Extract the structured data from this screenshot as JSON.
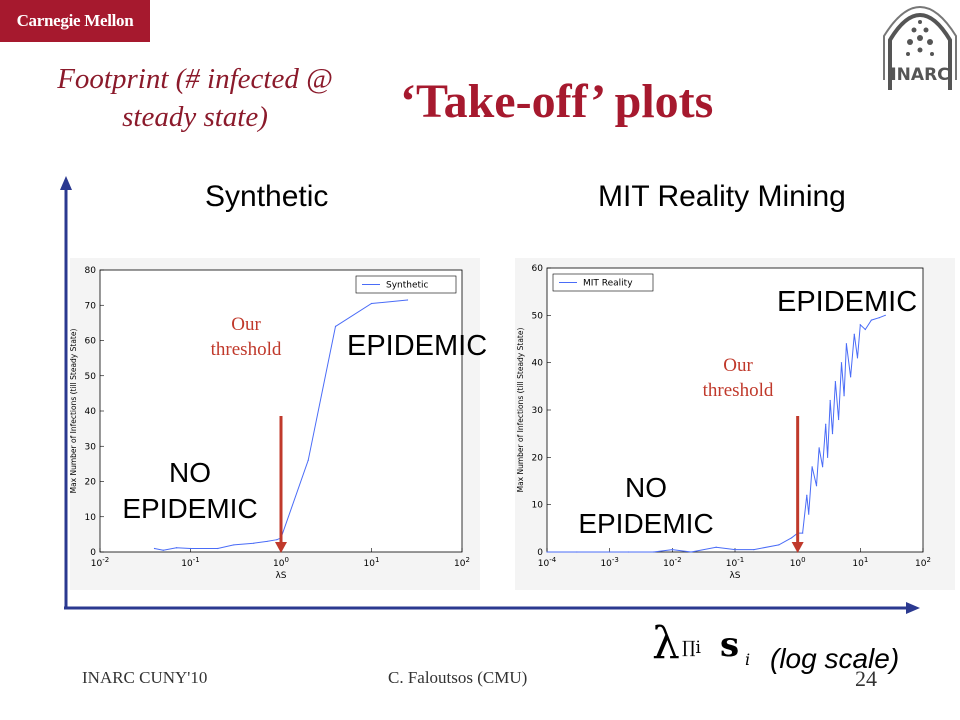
{
  "slide": {
    "logo_text": "Carnegie Mellon",
    "badge_text": "INARC",
    "subtitle": "Footprint (# infected @ steady state)",
    "title": "‘Take-off’ plots",
    "panel_left_title": "Synthetic",
    "panel_right_title": "MIT Reality Mining",
    "x_formula_lambda": "λ",
    "x_formula_prod": "∏i",
    "x_formula_s": "s",
    "x_formula_s_sub": "i",
    "log_scale": "(log scale)",
    "footer_left": "INARC CUNY'10",
    "footer_center": "C. Faloutsos (CMU)",
    "slide_number": "24",
    "annotations": {
      "left_no_epidemic_1": "NO",
      "left_no_epidemic_2": "EPIDEMIC",
      "left_epidemic": "EPIDEMIC",
      "left_threshold_1": "Our",
      "left_threshold_2": "threshold",
      "right_no_epidemic_1": "NO",
      "right_no_epidemic_2": "EPIDEMIC",
      "right_epidemic": "EPIDEMIC",
      "right_threshold_1": "Our",
      "right_threshold_2": "threshold"
    },
    "colors": {
      "accent": "#a6192e",
      "arrow": "#c0392b",
      "line": "#4a6cf7",
      "axis": "#2b3990"
    }
  },
  "chart_data": [
    {
      "type": "line",
      "xscale": "log",
      "xlim": [
        0.01,
        100
      ],
      "ylim": [
        0,
        80
      ],
      "xlabel": "λS",
      "ylabel": "Max Number of Infections (till Steady State)",
      "x_ticks": [
        "10-2",
        "10-1",
        "100",
        "101",
        "102"
      ],
      "y_ticks": [
        "0",
        "10",
        "20",
        "30",
        "40",
        "50",
        "60",
        "70",
        "80"
      ],
      "legend": "top-right",
      "grid": false,
      "series": [
        {
          "name": "Synthetic",
          "x": [
            0.04,
            0.05,
            0.07,
            0.1,
            0.2,
            0.3,
            0.5,
            0.7,
            0.9,
            1.0,
            2.0,
            4.0,
            10.0,
            25.0
          ],
          "y": [
            1.0,
            0.5,
            1.2,
            1.0,
            1.0,
            2.0,
            2.5,
            3.0,
            3.5,
            4.0,
            26.0,
            64.0,
            70.5,
            71.5
          ]
        }
      ],
      "threshold_x": 1.0
    },
    {
      "type": "line",
      "xscale": "log",
      "xlim": [
        0.0001,
        100
      ],
      "ylim": [
        0,
        60
      ],
      "xlabel": "λS",
      "ylabel": "Max Number of Infections (till Steady State)",
      "x_ticks": [
        "10-4",
        "10-3",
        "10-2",
        "10-1",
        "100",
        "101",
        "102"
      ],
      "y_ticks": [
        "0",
        "10",
        "20",
        "30",
        "40",
        "50",
        "60"
      ],
      "legend": "top-left",
      "grid": false,
      "series": [
        {
          "name": "MIT Reality",
          "x": [
            0.0001,
            0.0003,
            0.001,
            0.002,
            0.005,
            0.01,
            0.02,
            0.05,
            0.1,
            0.2,
            0.5,
            0.8,
            1.0,
            1.2,
            1.4,
            1.5,
            1.7,
            2.0,
            2.2,
            2.5,
            2.8,
            3.0,
            3.3,
            3.6,
            4.0,
            4.5,
            5.0,
            5.5,
            6.0,
            7.0,
            8.0,
            9.0,
            10.0,
            12.0,
            15.0,
            20.0,
            25.0
          ],
          "y": [
            0,
            0,
            0,
            0,
            0,
            0.5,
            0,
            1,
            0.5,
            0.5,
            1.5,
            3,
            4,
            4,
            12,
            8,
            18,
            14,
            22,
            18,
            27,
            20,
            32,
            25,
            36,
            28,
            40,
            33,
            44,
            37,
            46,
            41,
            48,
            47,
            49,
            49.5,
            50
          ]
        }
      ],
      "threshold_x": 1.0
    }
  ]
}
